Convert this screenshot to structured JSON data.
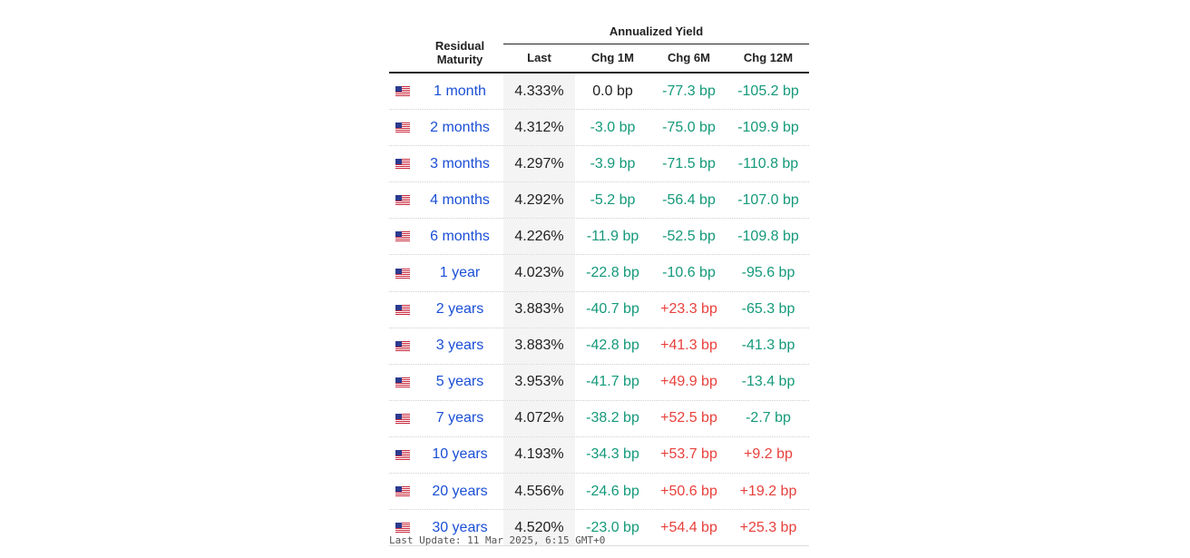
{
  "header": {
    "group_title": "Annualized Yield",
    "col_maturity_line1": "Residual",
    "col_maturity_line2": "Maturity",
    "col_last": "Last",
    "col_chg1m": "Chg 1M",
    "col_chg6m": "Chg 6M",
    "col_chg12m": "Chg 12M"
  },
  "colors": {
    "link": "#1a4fd6",
    "negative": "#14997a",
    "positive": "#e8413c"
  },
  "flag_icon": "us-flag-icon",
  "rows": [
    {
      "maturity": "1 month",
      "last": "4.333%",
      "chg1m": "0.0 bp",
      "chg6m": "-77.3 bp",
      "chg12m": "-105.2 bp"
    },
    {
      "maturity": "2 months",
      "last": "4.312%",
      "chg1m": "-3.0 bp",
      "chg6m": "-75.0 bp",
      "chg12m": "-109.9 bp"
    },
    {
      "maturity": "3 months",
      "last": "4.297%",
      "chg1m": "-3.9 bp",
      "chg6m": "-71.5 bp",
      "chg12m": "-110.8 bp"
    },
    {
      "maturity": "4 months",
      "last": "4.292%",
      "chg1m": "-5.2 bp",
      "chg6m": "-56.4 bp",
      "chg12m": "-107.0 bp"
    },
    {
      "maturity": "6 months",
      "last": "4.226%",
      "chg1m": "-11.9 bp",
      "chg6m": "-52.5 bp",
      "chg12m": "-109.8 bp"
    },
    {
      "maturity": "1 year",
      "last": "4.023%",
      "chg1m": "-22.8 bp",
      "chg6m": "-10.6 bp",
      "chg12m": "-95.6 bp"
    },
    {
      "maturity": "2 years",
      "last": "3.883%",
      "chg1m": "-40.7 bp",
      "chg6m": "+23.3 bp",
      "chg12m": "-65.3 bp"
    },
    {
      "maturity": "3 years",
      "last": "3.883%",
      "chg1m": "-42.8 bp",
      "chg6m": "+41.3 bp",
      "chg12m": "-41.3 bp"
    },
    {
      "maturity": "5 years",
      "last": "3.953%",
      "chg1m": "-41.7 bp",
      "chg6m": "+49.9 bp",
      "chg12m": "-13.4 bp"
    },
    {
      "maturity": "7 years",
      "last": "4.072%",
      "chg1m": "-38.2 bp",
      "chg6m": "+52.5 bp",
      "chg12m": "-2.7 bp"
    },
    {
      "maturity": "10 years",
      "last": "4.193%",
      "chg1m": "-34.3 bp",
      "chg6m": "+53.7 bp",
      "chg12m": "+9.2 bp"
    },
    {
      "maturity": "20 years",
      "last": "4.556%",
      "chg1m": "-24.6 bp",
      "chg6m": "+50.6 bp",
      "chg12m": "+19.2 bp"
    },
    {
      "maturity": "30 years",
      "last": "4.520%",
      "chg1m": "-23.0 bp",
      "chg6m": "+54.4 bp",
      "chg12m": "+25.3 bp"
    }
  ],
  "footer": {
    "last_update": "Last Update: 11 Mar 2025, 6:15 GMT+0"
  }
}
